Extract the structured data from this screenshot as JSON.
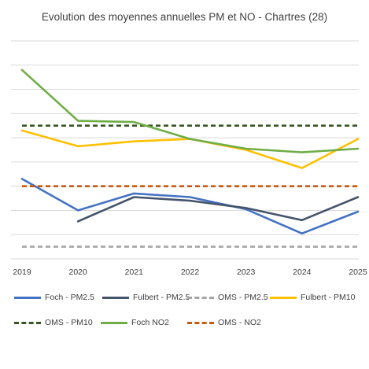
{
  "chart_data": {
    "type": "line",
    "title": "Evolution des moyennes annuelles PM et NO - Chartres (28)",
    "xlabel": "",
    "ylabel": "",
    "x": [
      "2019",
      "2020",
      "2021",
      "2022",
      "2023",
      "2024",
      "2025"
    ],
    "ylim": [
      0,
      9
    ],
    "grid": true,
    "legend_position": "bottom",
    "series": [
      {
        "name": "Foch - PM2.5",
        "color": "#4472C4",
        "dash": "solid",
        "values": [
          3.3,
          2.0,
          2.7,
          2.55,
          2.05,
          1.05,
          1.95
        ]
      },
      {
        "name": "Fulbert - PM2.5",
        "color": "#44546A",
        "dash": "solid",
        "values": [
          null,
          1.55,
          2.55,
          2.4,
          2.1,
          1.6,
          2.55
        ]
      },
      {
        "name": "OMS - PM2.5",
        "color": "#A5A5A5",
        "dash": "dashed",
        "values": [
          0.5,
          0.5,
          0.5,
          0.5,
          0.5,
          0.5,
          0.5
        ]
      },
      {
        "name": "Fulbert - PM10",
        "color": "#FFC000",
        "dash": "solid",
        "values": [
          5.3,
          4.65,
          4.85,
          4.95,
          4.5,
          3.75,
          4.95
        ]
      },
      {
        "name": "OMS - PM10",
        "color": "#375623",
        "dash": "dashed",
        "values": [
          5.5,
          5.5,
          5.5,
          5.5,
          5.5,
          5.5,
          5.5
        ]
      },
      {
        "name": "Foch NO2",
        "color": "#70AD47",
        "dash": "solid",
        "values": [
          7.8,
          5.7,
          5.65,
          4.95,
          4.55,
          4.4,
          4.55
        ]
      },
      {
        "name": "OMS - NO2",
        "color": "#C55A11",
        "dash": "dashed",
        "values": [
          3.0,
          3.0,
          3.0,
          3.0,
          3.0,
          3.0,
          3.0
        ]
      }
    ]
  }
}
